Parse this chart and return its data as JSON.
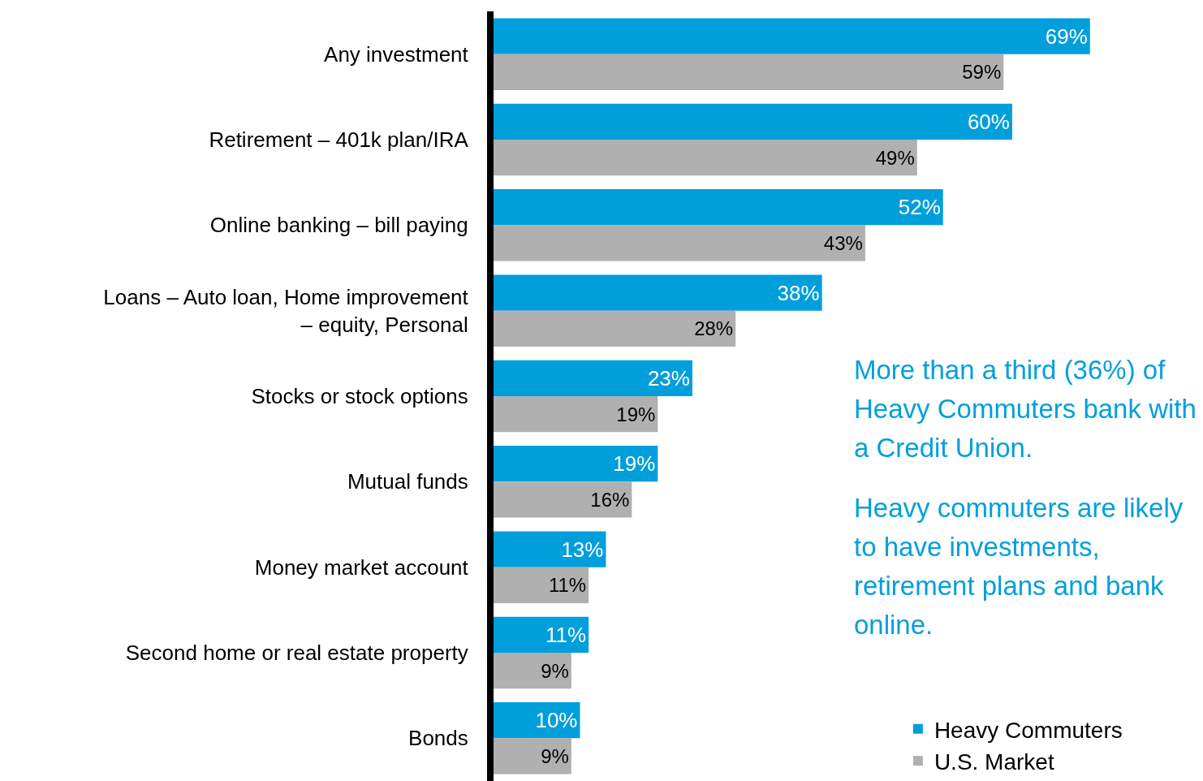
{
  "chart_data": {
    "type": "bar",
    "orientation": "horizontal",
    "categories": [
      "Any investment",
      "Retirement – 401k plan/IRA",
      "Online banking – bill paying",
      "Loans – Auto loan, Home improvement – equity, Personal",
      "Stocks or stock options",
      "Mutual funds",
      "Money market account",
      "Second home or real estate property",
      "Bonds"
    ],
    "series": [
      {
        "name": "Heavy Commuters",
        "color": "#009fdb",
        "values": [
          69,
          60,
          52,
          38,
          23,
          19,
          13,
          11,
          10
        ],
        "value_labels": [
          "69%",
          "60%",
          "52%",
          "38%",
          "23%",
          "19%",
          "13%",
          "11%",
          "10%"
        ]
      },
      {
        "name": "U.S. Market",
        "color": "#b0b0b0",
        "values": [
          59,
          49,
          43,
          28,
          19,
          16,
          11,
          9,
          9
        ],
        "value_labels": [
          "59%",
          "49%",
          "43%",
          "28%",
          "19%",
          "16%",
          "11%",
          "9%",
          "9%"
        ]
      }
    ],
    "annotations": [
      "More than a third (36%) of Heavy Commuters bank with a Credit Union.",
      "Heavy commuters are likely to have investments, retirement plans and bank online."
    ],
    "legend": "bottom right",
    "tick_labels": "y",
    "grid": false
  }
}
